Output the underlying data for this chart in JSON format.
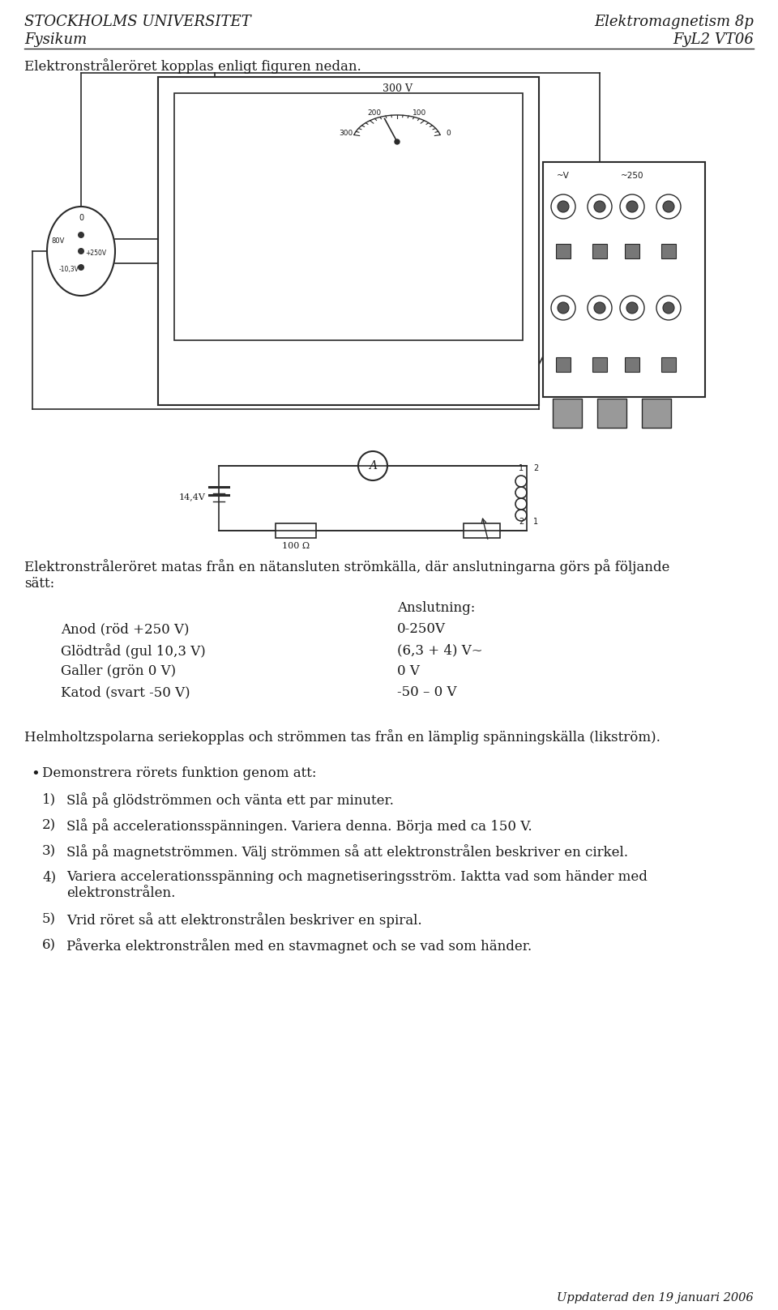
{
  "header_left_line1": "STOCKHOLMS UNIVERSITET",
  "header_left_line2": "Fysikum",
  "header_right_line1": "Elektromagnetism 8p",
  "header_right_line2": "FyL2 VT06",
  "intro_text": "Elektronstråleröret kopplas enligt figuren nedan.",
  "body_text1_line1": "Elektronstråleröret matas från en nätansluten strömkälla, där anslutningarna görs på följande",
  "body_text1_line2": "sätt:",
  "col2_header": "Anslutning:",
  "row1_col1": "Anod (röd +250 V)",
  "row1_col2": "0-250V",
  "row2_col1": "Glödtråd (gul 10,3 V)",
  "row2_col2": "(6,3 + 4) V~",
  "row3_col1": "Galler (grön 0 V)",
  "row3_col2": "0 V",
  "row4_col1": "Katod (svart -50 V)",
  "row4_col2": "-50 – 0 V",
  "helmholtz_text": "Helmholtzspolarna seriekopplas och strömmen tas från en lämplig spänningskälla (likström).",
  "bullet_header": "Demonstrera rörets funktion genom att:",
  "bullet1_num": "1)",
  "bullet1_text": "Slå på glödströmmen och vänta ett par minuter.",
  "bullet2_num": "2)",
  "bullet2_text": "Slå på accelerationsspänningen. Variera denna. Börja med ca 150 V.",
  "bullet3_num": "3)",
  "bullet3_text": "Slå på magnetströmmen. Välj strömmen så att elektronstrålen beskriver en cirkel.",
  "bullet4_num": "4)",
  "bullet4_text": "Variera accelerationsspänning och magnetiseringsström. Iaktta vad som händer med",
  "bullet4_text2": "elektronstrålen.",
  "bullet5_num": "5)",
  "bullet5_text": "Vrid röret så att elektronstrålen beskriver en spiral.",
  "bullet6_num": "6)",
  "bullet6_text": "Påverka elektronstrålen med en stavmagnet och se vad som händer.",
  "footer": "Uppdaterad den 19 januari 2006",
  "bg_color": "#ffffff",
  "text_color": "#1a1a1a",
  "line_color": "#2a2a2a",
  "font_size_header": 13,
  "font_size_body": 12,
  "font_size_small": 10.5,
  "fig_width": 9.6,
  "fig_height": 16.17,
  "dpi": 100
}
